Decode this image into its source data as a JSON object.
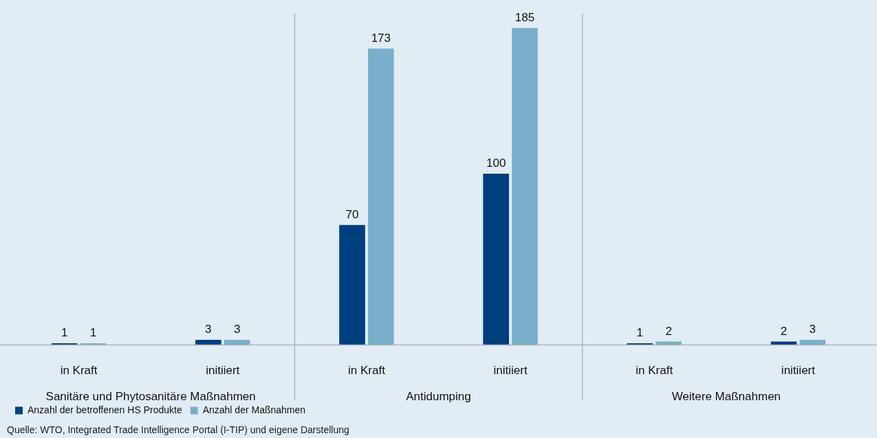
{
  "chart_data": {
    "type": "bar",
    "categories": [
      "in Kraft",
      "initiiert",
      "in Kraft",
      "initiiert",
      "in Kraft",
      "initiiert"
    ],
    "series": [
      {
        "name": "Anzahl der betroffenen HS Produkte",
        "color": "#003f7d",
        "values": [
          1,
          3,
          70,
          100,
          1,
          2
        ]
      },
      {
        "name": "Anzahl der Maßnahmen",
        "color": "#79afcb",
        "values": [
          1,
          3,
          173,
          185,
          2,
          3
        ]
      }
    ],
    "data_labels": true,
    "legend": "bottom left",
    "annotations": [
      "Sanitäre und Phytosanitäre Maßnahmen",
      "Antidumping",
      "Weitere Maßnahmen",
      "Quelle: WTO, Integrated Trade Intelligence Portal (I-TIP) und eigene Darstellung"
    ]
  }
}
